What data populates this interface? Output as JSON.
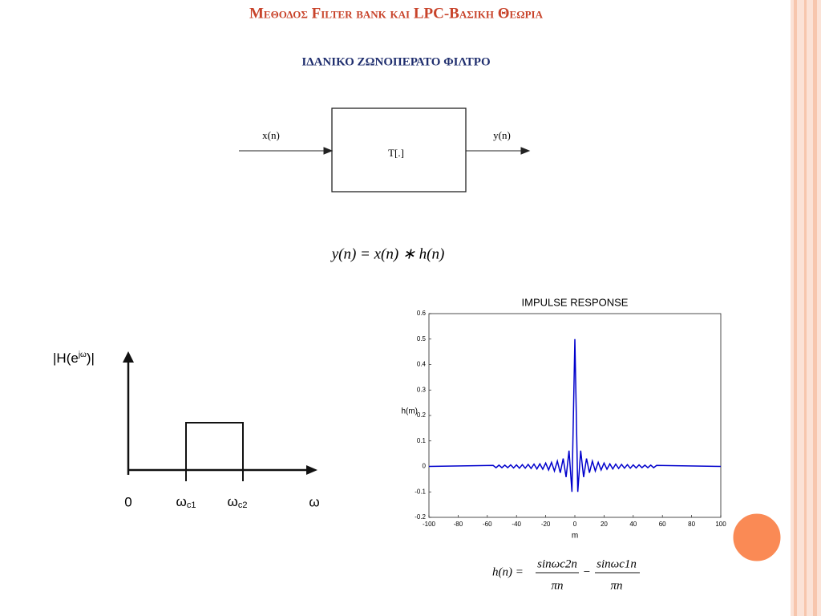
{
  "header": {
    "title": "Μεθοδος  Filter bank και LPC-Βασικη Θεωρια",
    "subtitle": "ΙΔΑΝΙΚΟ ΖΩΝΟΠΕΡΑΤΟ ΦΙΛΤΡΟ"
  },
  "diagram": {
    "input": "x(n)",
    "block": "T[.]",
    "output": "y(n)"
  },
  "equation": "y(n) = x(n) ∗ h(n)",
  "magnitude_plot": {
    "y_label": {
      "main": "|H(e",
      "sup": "jω",
      ")": ")|"
    },
    "zero": "0",
    "wc1": {
      "main": "ω",
      "sub": "c1"
    },
    "wc2": {
      "main": "ω",
      "sub": "c2"
    },
    "x_label": "ω"
  },
  "chart_data": {
    "type": "line",
    "title": "IMPULSE RESPONSE",
    "x_label": "m",
    "y_label": "h(m)",
    "x": [
      -100,
      -56,
      -54,
      -52,
      -50,
      -48,
      -46,
      -44,
      -42,
      -40,
      -38,
      -36,
      -34,
      -32,
      -30,
      -28,
      -26,
      -24,
      -22,
      -20,
      -18,
      -16,
      -14,
      -12,
      -10,
      -8,
      -6,
      -4,
      -2,
      0,
      2,
      4,
      6,
      8,
      10,
      12,
      14,
      16,
      18,
      20,
      22,
      24,
      26,
      28,
      30,
      32,
      34,
      36,
      38,
      40,
      42,
      44,
      46,
      48,
      50,
      52,
      54,
      56,
      100
    ],
    "series": [
      {
        "name": "h(m)",
        "color": "#0000cc",
        "values": [
          0,
          0.004,
          -0.005,
          0.005,
          -0.005,
          0.005,
          -0.005,
          0.006,
          -0.006,
          0.006,
          -0.007,
          0.007,
          -0.007,
          0.008,
          -0.008,
          0.009,
          -0.01,
          0.01,
          -0.011,
          0.013,
          -0.014,
          0.016,
          -0.018,
          0.021,
          -0.025,
          0.031,
          -0.042,
          0.062,
          -0.1,
          0.5,
          -0.1,
          0.062,
          -0.042,
          0.031,
          -0.025,
          0.021,
          -0.018,
          0.016,
          -0.014,
          0.013,
          -0.011,
          0.01,
          -0.01,
          0.009,
          -0.008,
          0.008,
          -0.007,
          0.007,
          -0.007,
          0.006,
          -0.006,
          0.006,
          -0.005,
          0.005,
          -0.005,
          0.005,
          -0.005,
          0.004,
          0
        ]
      }
    ],
    "xlim": [
      -100,
      100
    ],
    "ylim": [
      -0.2,
      0.6
    ],
    "xticks": [
      -100,
      -80,
      -60,
      -40,
      -20,
      0,
      20,
      40,
      60,
      80,
      100
    ],
    "yticks": [
      -0.2,
      -0.1,
      0,
      0.1,
      0.2,
      0.3,
      0.4,
      0.5,
      0.6
    ]
  },
  "formula": {
    "lhs": "h(n) =",
    "num1": "sinωc2n",
    "den1": "πn",
    "minus": "−",
    "num2": "sinωc1n",
    "den2": "πn"
  }
}
